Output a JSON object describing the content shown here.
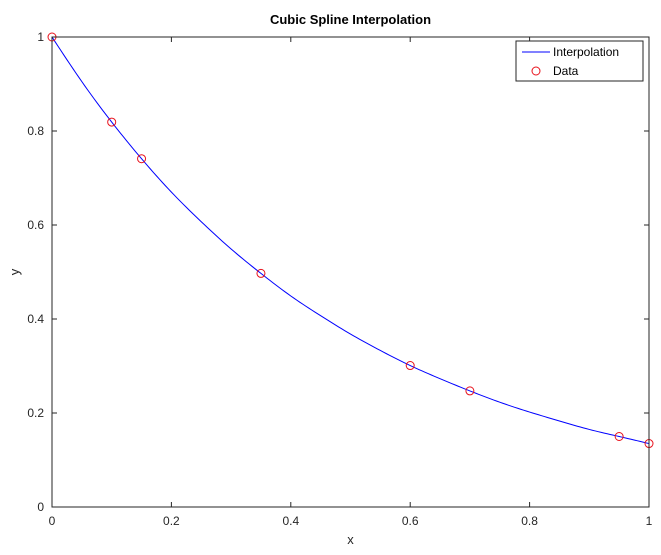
{
  "chart_data": {
    "type": "line",
    "title": "Cubic Spline Interpolation",
    "xlabel": "x",
    "ylabel": "y",
    "xlim": [
      0,
      1
    ],
    "ylim": [
      0,
      1
    ],
    "xticks": [
      0,
      0.2,
      0.4,
      0.6,
      0.8,
      1
    ],
    "xtick_labels": [
      "0",
      "0.2",
      "0.4",
      "0.6",
      "0.8",
      "1"
    ],
    "yticks": [
      0,
      0.2,
      0.4,
      0.6,
      0.8,
      1
    ],
    "ytick_labels": [
      "0",
      "0.2",
      "0.4",
      "0.6",
      "0.8",
      "1"
    ],
    "grid": false,
    "legend_position": "top-right",
    "series": [
      {
        "name": "Interpolation",
        "style": "line",
        "color": "#0000ff",
        "x": [
          0,
          0.05,
          0.1,
          0.15,
          0.2,
          0.25,
          0.3,
          0.35,
          0.4,
          0.45,
          0.5,
          0.55,
          0.6,
          0.65,
          0.7,
          0.75,
          0.8,
          0.85,
          0.9,
          0.95,
          1
        ],
        "y": [
          1,
          0.905,
          0.819,
          0.741,
          0.67,
          0.607,
          0.549,
          0.497,
          0.449,
          0.407,
          0.368,
          0.333,
          0.301,
          0.273,
          0.247,
          0.223,
          0.202,
          0.183,
          0.165,
          0.15,
          0.135
        ]
      },
      {
        "name": "Data",
        "style": "markers",
        "marker": "circle",
        "color": "#e8101a",
        "x": [
          0,
          0.1,
          0.15,
          0.35,
          0.6,
          0.7,
          0.95,
          1
        ],
        "y": [
          1,
          0.819,
          0.741,
          0.497,
          0.301,
          0.247,
          0.15,
          0.135
        ]
      }
    ]
  }
}
